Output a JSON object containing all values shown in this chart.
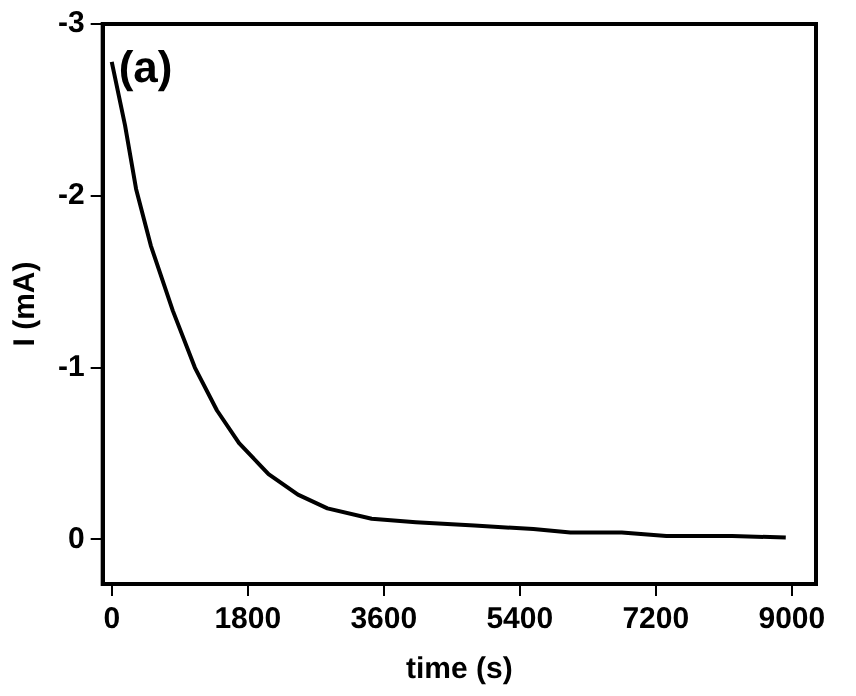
{
  "chart_data": {
    "type": "line",
    "xlabel": "time (s)",
    "ylabel": "I (mA)",
    "annotations": [
      "(a)"
    ],
    "xlim": [
      -120,
      9320
    ],
    "xticks": [
      0,
      1800,
      3600,
      5400,
      7200,
      9000
    ],
    "ylim": [
      0.26,
      -3
    ],
    "yticks": [
      -3,
      -2,
      -1,
      0
    ],
    "grid": false,
    "legend": false,
    "marker": "none",
    "line_style": "solid",
    "series": [
      {
        "color": "#000000",
        "x": [
          0,
          176,
          322,
          517,
          809,
          1100,
          1393,
          1685,
          2075,
          2464,
          2854,
          3440,
          4025,
          4800,
          5580,
          6070,
          6750,
          7340,
          8210,
          8920
        ],
        "values": [
          -2.78,
          -2.41,
          -2.04,
          -1.71,
          -1.33,
          -1.0,
          -0.75,
          -0.56,
          -0.38,
          -0.26,
          -0.18,
          -0.12,
          -0.1,
          -0.08,
          -0.06,
          -0.04,
          -0.04,
          -0.02,
          -0.02,
          -0.01
        ]
      }
    ]
  }
}
